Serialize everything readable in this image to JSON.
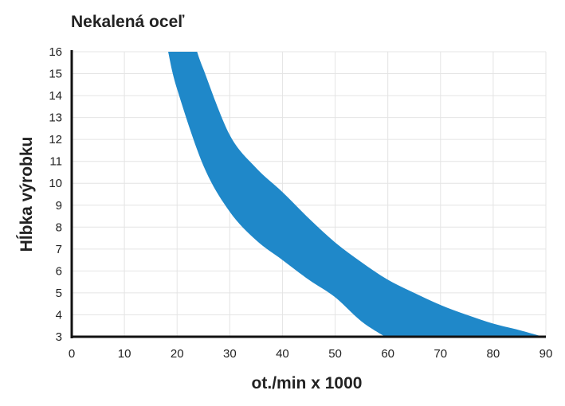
{
  "chart_data": {
    "type": "area",
    "title": "Nekalená oceľ",
    "xlabel": "ot./min x 1000",
    "ylabel": "Hĺbka výrobku",
    "xlim": [
      0,
      90
    ],
    "ylim": [
      3,
      16
    ],
    "x_ticks": [
      0,
      10,
      20,
      30,
      40,
      50,
      60,
      70,
      80,
      90
    ],
    "y_ticks": [
      3,
      4,
      5,
      6,
      7,
      8,
      9,
      10,
      11,
      12,
      13,
      14,
      15,
      16
    ],
    "grid": true,
    "band": {
      "color": "#1f88c9",
      "lower_edge": [
        [
          18.3,
          16
        ],
        [
          20,
          14.3
        ],
        [
          25,
          10.8
        ],
        [
          30,
          8.7
        ],
        [
          35,
          7.4
        ],
        [
          40,
          6.5
        ],
        [
          45,
          5.6
        ],
        [
          50,
          4.8
        ],
        [
          55,
          3.7
        ],
        [
          59.5,
          3
        ]
      ],
      "upper_edge": [
        [
          23.8,
          16
        ],
        [
          25,
          15.2
        ],
        [
          30,
          12.2
        ],
        [
          35,
          10.7
        ],
        [
          40,
          9.6
        ],
        [
          45,
          8.4
        ],
        [
          50,
          7.3
        ],
        [
          55,
          6.4
        ],
        [
          60,
          5.6
        ],
        [
          65,
          5
        ],
        [
          70,
          4.45
        ],
        [
          75,
          4.0
        ],
        [
          80,
          3.6
        ],
        [
          85,
          3.3
        ],
        [
          89.5,
          3
        ]
      ]
    },
    "colors": {
      "band": "#1f88c9",
      "grid": "#e4e4e4",
      "axis": "#111111",
      "text": "#222222"
    }
  }
}
